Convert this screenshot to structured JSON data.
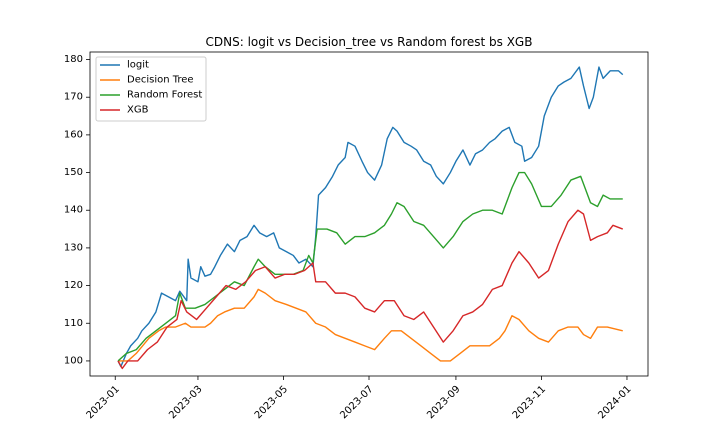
{
  "chart_data": {
    "type": "line",
    "title": "CDNS: logit vs Decision_tree vs Random forest bs XGB",
    "xlabel": "",
    "ylabel": "",
    "x_ticks": [
      "2023-01",
      "2023-03",
      "2023-05",
      "2023-07",
      "2023-09",
      "2023-11",
      "2024-01"
    ],
    "y_ticks": [
      100,
      110,
      120,
      130,
      140,
      150,
      160,
      170,
      180
    ],
    "xlim": [
      "2022-12-14",
      "2024-01-16"
    ],
    "ylim": [
      96,
      182
    ],
    "grid": false,
    "legend_position": "top-left",
    "series": [
      {
        "name": "logit",
        "color": "#1f77b4",
        "points": [
          [
            "2023-01-03",
            100
          ],
          [
            "2023-01-05",
            98.5
          ],
          [
            "2023-01-09",
            102
          ],
          [
            "2023-01-12",
            104
          ],
          [
            "2023-01-17",
            106
          ],
          [
            "2023-01-20",
            108
          ],
          [
            "2023-01-25",
            110
          ],
          [
            "2023-01-30",
            113
          ],
          [
            "2023-02-03",
            118
          ],
          [
            "2023-02-08",
            117
          ],
          [
            "2023-02-13",
            116
          ],
          [
            "2023-02-16",
            118.5
          ],
          [
            "2023-02-21",
            116
          ],
          [
            "2023-02-22",
            127
          ],
          [
            "2023-02-24",
            122
          ],
          [
            "2023-03-01",
            121
          ],
          [
            "2023-03-03",
            125
          ],
          [
            "2023-03-06",
            122.5
          ],
          [
            "2023-03-10",
            123
          ],
          [
            "2023-03-13",
            125
          ],
          [
            "2023-03-17",
            128
          ],
          [
            "2023-03-22",
            131
          ],
          [
            "2023-03-27",
            129
          ],
          [
            "2023-03-31",
            132
          ],
          [
            "2023-04-05",
            133
          ],
          [
            "2023-04-10",
            136
          ],
          [
            "2023-04-14",
            134
          ],
          [
            "2023-04-19",
            133
          ],
          [
            "2023-04-24",
            134
          ],
          [
            "2023-04-28",
            130
          ],
          [
            "2023-05-03",
            129
          ],
          [
            "2023-05-08",
            128
          ],
          [
            "2023-05-12",
            126
          ],
          [
            "2023-05-17",
            127
          ],
          [
            "2023-05-22",
            125
          ],
          [
            "2023-05-24",
            133
          ],
          [
            "2023-05-26",
            144
          ],
          [
            "2023-05-31",
            146
          ],
          [
            "2023-06-05",
            149
          ],
          [
            "2023-06-09",
            152
          ],
          [
            "2023-06-14",
            154
          ],
          [
            "2023-06-16",
            158
          ],
          [
            "2023-06-21",
            157
          ],
          [
            "2023-06-26",
            153
          ],
          [
            "2023-06-30",
            150
          ],
          [
            "2023-07-05",
            148
          ],
          [
            "2023-07-10",
            152
          ],
          [
            "2023-07-14",
            159
          ],
          [
            "2023-07-18",
            162
          ],
          [
            "2023-07-21",
            161
          ],
          [
            "2023-07-26",
            158
          ],
          [
            "2023-07-31",
            157
          ],
          [
            "2023-08-04",
            156
          ],
          [
            "2023-08-09",
            153
          ],
          [
            "2023-08-14",
            152
          ],
          [
            "2023-08-18",
            149
          ],
          [
            "2023-08-23",
            147
          ],
          [
            "2023-08-28",
            150
          ],
          [
            "2023-09-01",
            153
          ],
          [
            "2023-09-06",
            156
          ],
          [
            "2023-09-11",
            152
          ],
          [
            "2023-09-15",
            155
          ],
          [
            "2023-09-20",
            156
          ],
          [
            "2023-09-25",
            158
          ],
          [
            "2023-09-29",
            159
          ],
          [
            "2023-10-04",
            161
          ],
          [
            "2023-10-09",
            162
          ],
          [
            "2023-10-13",
            158
          ],
          [
            "2023-10-18",
            157
          ],
          [
            "2023-10-20",
            153
          ],
          [
            "2023-10-25",
            154
          ],
          [
            "2023-10-30",
            157
          ],
          [
            "2023-11-03",
            165
          ],
          [
            "2023-11-08",
            170
          ],
          [
            "2023-11-13",
            173
          ],
          [
            "2023-11-17",
            174
          ],
          [
            "2023-11-22",
            175
          ],
          [
            "2023-11-28",
            178
          ],
          [
            "2023-12-01",
            173
          ],
          [
            "2023-12-05",
            167
          ],
          [
            "2023-12-08",
            170
          ],
          [
            "2023-12-12",
            178
          ],
          [
            "2023-12-15",
            175
          ],
          [
            "2023-12-20",
            177
          ],
          [
            "2023-12-26",
            177
          ],
          [
            "2023-12-29",
            176
          ]
        ]
      },
      {
        "name": "Decision Tree",
        "color": "#ff7f0e",
        "points": [
          [
            "2023-01-03",
            100
          ],
          [
            "2023-01-10",
            100
          ],
          [
            "2023-01-16",
            102
          ],
          [
            "2023-01-25",
            106
          ],
          [
            "2023-02-01",
            108
          ],
          [
            "2023-02-06",
            109
          ],
          [
            "2023-02-13",
            109
          ],
          [
            "2023-02-20",
            110
          ],
          [
            "2023-02-24",
            109
          ],
          [
            "2023-03-01",
            109
          ],
          [
            "2023-03-06",
            109
          ],
          [
            "2023-03-10",
            110
          ],
          [
            "2023-03-15",
            112
          ],
          [
            "2023-03-20",
            113
          ],
          [
            "2023-03-27",
            114
          ],
          [
            "2023-04-03",
            114
          ],
          [
            "2023-04-10",
            117
          ],
          [
            "2023-04-13",
            119
          ],
          [
            "2023-04-18",
            118
          ],
          [
            "2023-04-25",
            116
          ],
          [
            "2023-05-03",
            115
          ],
          [
            "2023-05-10",
            114
          ],
          [
            "2023-05-17",
            113
          ],
          [
            "2023-05-24",
            110
          ],
          [
            "2023-05-31",
            109
          ],
          [
            "2023-06-07",
            107
          ],
          [
            "2023-06-14",
            106
          ],
          [
            "2023-06-21",
            105
          ],
          [
            "2023-06-28",
            104
          ],
          [
            "2023-07-05",
            103
          ],
          [
            "2023-07-12",
            106
          ],
          [
            "2023-07-17",
            108
          ],
          [
            "2023-07-24",
            108
          ],
          [
            "2023-07-31",
            106
          ],
          [
            "2023-08-07",
            104
          ],
          [
            "2023-08-14",
            102
          ],
          [
            "2023-08-21",
            100
          ],
          [
            "2023-08-28",
            100
          ],
          [
            "2023-09-04",
            102
          ],
          [
            "2023-09-11",
            104
          ],
          [
            "2023-09-18",
            104
          ],
          [
            "2023-09-25",
            104
          ],
          [
            "2023-10-02",
            106
          ],
          [
            "2023-10-06",
            108
          ],
          [
            "2023-10-11",
            112
          ],
          [
            "2023-10-16",
            111
          ],
          [
            "2023-10-23",
            108
          ],
          [
            "2023-10-30",
            106
          ],
          [
            "2023-11-06",
            105
          ],
          [
            "2023-11-13",
            108
          ],
          [
            "2023-11-20",
            109
          ],
          [
            "2023-11-27",
            109
          ],
          [
            "2023-12-01",
            107
          ],
          [
            "2023-12-06",
            106
          ],
          [
            "2023-12-11",
            109
          ],
          [
            "2023-12-18",
            109
          ],
          [
            "2023-12-29",
            108
          ]
        ]
      },
      {
        "name": "Random Forest",
        "color": "#2ca02c",
        "points": [
          [
            "2023-01-03",
            100
          ],
          [
            "2023-01-09",
            102
          ],
          [
            "2023-01-16",
            103
          ],
          [
            "2023-01-23",
            106
          ],
          [
            "2023-01-30",
            108
          ],
          [
            "2023-02-06",
            110
          ],
          [
            "2023-02-13",
            112
          ],
          [
            "2023-02-16",
            118
          ],
          [
            "2023-02-20",
            114
          ],
          [
            "2023-02-27",
            114
          ],
          [
            "2023-03-06",
            115
          ],
          [
            "2023-03-13",
            117
          ],
          [
            "2023-03-20",
            119
          ],
          [
            "2023-03-27",
            121
          ],
          [
            "2023-04-03",
            120
          ],
          [
            "2023-04-10",
            125
          ],
          [
            "2023-04-13",
            127
          ],
          [
            "2023-04-18",
            125
          ],
          [
            "2023-04-25",
            123
          ],
          [
            "2023-05-01",
            123
          ],
          [
            "2023-05-08",
            123
          ],
          [
            "2023-05-15",
            124
          ],
          [
            "2023-05-19",
            128
          ],
          [
            "2023-05-22",
            126
          ],
          [
            "2023-05-25",
            135
          ],
          [
            "2023-06-01",
            135
          ],
          [
            "2023-06-08",
            134
          ],
          [
            "2023-06-14",
            131
          ],
          [
            "2023-06-21",
            133
          ],
          [
            "2023-06-28",
            133
          ],
          [
            "2023-07-05",
            134
          ],
          [
            "2023-07-12",
            136
          ],
          [
            "2023-07-17",
            139
          ],
          [
            "2023-07-21",
            142
          ],
          [
            "2023-07-26",
            141
          ],
          [
            "2023-08-02",
            137
          ],
          [
            "2023-08-09",
            136
          ],
          [
            "2023-08-16",
            133
          ],
          [
            "2023-08-23",
            130
          ],
          [
            "2023-08-30",
            133
          ],
          [
            "2023-09-06",
            137
          ],
          [
            "2023-09-13",
            139
          ],
          [
            "2023-09-20",
            140
          ],
          [
            "2023-09-27",
            140
          ],
          [
            "2023-10-04",
            139
          ],
          [
            "2023-10-11",
            146
          ],
          [
            "2023-10-16",
            150
          ],
          [
            "2023-10-20",
            150
          ],
          [
            "2023-10-25",
            147
          ],
          [
            "2023-11-01",
            141
          ],
          [
            "2023-11-08",
            141
          ],
          [
            "2023-11-15",
            144
          ],
          [
            "2023-11-22",
            148
          ],
          [
            "2023-11-29",
            149
          ],
          [
            "2023-12-01",
            147
          ],
          [
            "2023-12-06",
            142
          ],
          [
            "2023-12-11",
            141
          ],
          [
            "2023-12-15",
            144
          ],
          [
            "2023-12-20",
            143
          ],
          [
            "2023-12-29",
            143
          ]
        ]
      },
      {
        "name": "XGB",
        "color": "#d62728",
        "points": [
          [
            "2023-01-03",
            100
          ],
          [
            "2023-01-06",
            98
          ],
          [
            "2023-01-10",
            100
          ],
          [
            "2023-01-17",
            100
          ],
          [
            "2023-01-24",
            103
          ],
          [
            "2023-01-31",
            105
          ],
          [
            "2023-02-07",
            109
          ],
          [
            "2023-02-14",
            111
          ],
          [
            "2023-02-17",
            116
          ],
          [
            "2023-02-21",
            113
          ],
          [
            "2023-02-28",
            111
          ],
          [
            "2023-03-07",
            114
          ],
          [
            "2023-03-14",
            117
          ],
          [
            "2023-03-21",
            120
          ],
          [
            "2023-03-28",
            119
          ],
          [
            "2023-04-04",
            121
          ],
          [
            "2023-04-11",
            124
          ],
          [
            "2023-04-18",
            125
          ],
          [
            "2023-04-25",
            122
          ],
          [
            "2023-05-02",
            123
          ],
          [
            "2023-05-09",
            123
          ],
          [
            "2023-05-16",
            124
          ],
          [
            "2023-05-22",
            126
          ],
          [
            "2023-05-24",
            121
          ],
          [
            "2023-05-31",
            121
          ],
          [
            "2023-06-07",
            118
          ],
          [
            "2023-06-14",
            118
          ],
          [
            "2023-06-21",
            117
          ],
          [
            "2023-06-28",
            114
          ],
          [
            "2023-07-05",
            113
          ],
          [
            "2023-07-12",
            116
          ],
          [
            "2023-07-19",
            116
          ],
          [
            "2023-07-26",
            112
          ],
          [
            "2023-08-02",
            111
          ],
          [
            "2023-08-09",
            113
          ],
          [
            "2023-08-16",
            109
          ],
          [
            "2023-08-23",
            105
          ],
          [
            "2023-08-30",
            108
          ],
          [
            "2023-09-06",
            112
          ],
          [
            "2023-09-13",
            113
          ],
          [
            "2023-09-20",
            115
          ],
          [
            "2023-09-27",
            119
          ],
          [
            "2023-10-04",
            120
          ],
          [
            "2023-10-11",
            126
          ],
          [
            "2023-10-16",
            129
          ],
          [
            "2023-10-23",
            126
          ],
          [
            "2023-10-30",
            122
          ],
          [
            "2023-11-06",
            124
          ],
          [
            "2023-11-13",
            131
          ],
          [
            "2023-11-20",
            137
          ],
          [
            "2023-11-27",
            140
          ],
          [
            "2023-12-01",
            139
          ],
          [
            "2023-12-06",
            132
          ],
          [
            "2023-12-11",
            133
          ],
          [
            "2023-12-18",
            134
          ],
          [
            "2023-12-22",
            136
          ],
          [
            "2023-12-29",
            135
          ]
        ]
      }
    ]
  }
}
